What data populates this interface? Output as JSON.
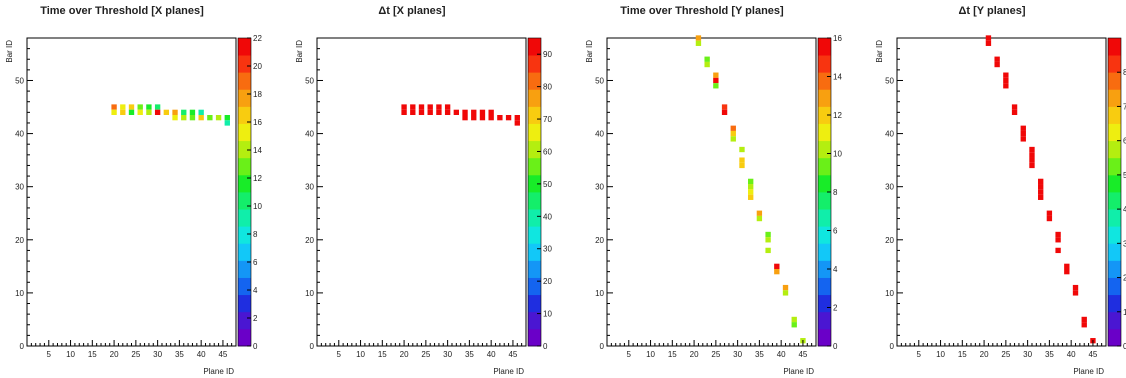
{
  "chart_data": [
    {
      "type": "heatmap",
      "title": "Time over Threshold [X planes]",
      "xlabel": "Plane ID",
      "ylabel": "Bar ID",
      "xlim": [
        0,
        48
      ],
      "ylim": [
        0,
        58
      ],
      "x_ticks": [
        5,
        10,
        15,
        20,
        25,
        30,
        35,
        40,
        45
      ],
      "y_ticks": [
        0,
        10,
        20,
        30,
        40,
        50
      ],
      "z_range": [
        0,
        22
      ],
      "z_ticks": [
        0,
        2,
        4,
        6,
        8,
        10,
        12,
        14,
        16,
        18,
        20,
        22
      ],
      "cells": [
        {
          "x": 20,
          "y": 45,
          "z": 19
        },
        {
          "x": 20,
          "y": 44,
          "z": 15
        },
        {
          "x": 22,
          "y": 45,
          "z": 15
        },
        {
          "x": 22,
          "y": 44,
          "z": 17
        },
        {
          "x": 24,
          "y": 45,
          "z": 16
        },
        {
          "x": 24,
          "y": 44,
          "z": 12
        },
        {
          "x": 26,
          "y": 45,
          "z": 13
        },
        {
          "x": 26,
          "y": 44,
          "z": 15
        },
        {
          "x": 28,
          "y": 45,
          "z": 12
        },
        {
          "x": 28,
          "y": 44,
          "z": 14
        },
        {
          "x": 30,
          "y": 45,
          "z": 10
        },
        {
          "x": 30,
          "y": 44,
          "z": 22
        },
        {
          "x": 32,
          "y": 44,
          "z": 17
        },
        {
          "x": 34,
          "y": 44,
          "z": 18
        },
        {
          "x": 34,
          "y": 43,
          "z": 15
        },
        {
          "x": 36,
          "y": 44,
          "z": 10
        },
        {
          "x": 36,
          "y": 43,
          "z": 14
        },
        {
          "x": 38,
          "y": 44,
          "z": 12
        },
        {
          "x": 38,
          "y": 43,
          "z": 13
        },
        {
          "x": 40,
          "y": 44,
          "z": 9
        },
        {
          "x": 40,
          "y": 43,
          "z": 17
        },
        {
          "x": 42,
          "y": 43,
          "z": 13
        },
        {
          "x": 44,
          "y": 43,
          "z": 14
        },
        {
          "x": 46,
          "y": 43,
          "z": 12
        },
        {
          "x": 46,
          "y": 42,
          "z": 9
        }
      ]
    },
    {
      "type": "heatmap",
      "title": "Δt [X planes]",
      "xlabel": "Plane ID",
      "ylabel": "Bar ID",
      "xlim": [
        0,
        48
      ],
      "ylim": [
        0,
        58
      ],
      "x_ticks": [
        5,
        10,
        15,
        20,
        25,
        30,
        35,
        40,
        45
      ],
      "y_ticks": [
        0,
        10,
        20,
        30,
        40,
        50
      ],
      "z_range": [
        0,
        95
      ],
      "z_ticks": [
        0,
        10,
        20,
        30,
        40,
        50,
        60,
        70,
        80,
        90
      ],
      "cells": [
        {
          "x": 20,
          "y": 45,
          "z": 92
        },
        {
          "x": 20,
          "y": 44,
          "z": 92
        },
        {
          "x": 22,
          "y": 45,
          "z": 92
        },
        {
          "x": 22,
          "y": 44,
          "z": 92
        },
        {
          "x": 24,
          "y": 45,
          "z": 92
        },
        {
          "x": 24,
          "y": 44,
          "z": 92
        },
        {
          "x": 26,
          "y": 45,
          "z": 92
        },
        {
          "x": 26,
          "y": 44,
          "z": 92
        },
        {
          "x": 28,
          "y": 45,
          "z": 92
        },
        {
          "x": 28,
          "y": 44,
          "z": 92
        },
        {
          "x": 30,
          "y": 45,
          "z": 92
        },
        {
          "x": 30,
          "y": 44,
          "z": 92
        },
        {
          "x": 32,
          "y": 44,
          "z": 92
        },
        {
          "x": 34,
          "y": 44,
          "z": 92
        },
        {
          "x": 34,
          "y": 43,
          "z": 92
        },
        {
          "x": 36,
          "y": 44,
          "z": 92
        },
        {
          "x": 36,
          "y": 43,
          "z": 92
        },
        {
          "x": 38,
          "y": 44,
          "z": 92
        },
        {
          "x": 38,
          "y": 43,
          "z": 92
        },
        {
          "x": 40,
          "y": 44,
          "z": 92
        },
        {
          "x": 40,
          "y": 43,
          "z": 92
        },
        {
          "x": 42,
          "y": 43,
          "z": 92
        },
        {
          "x": 44,
          "y": 43,
          "z": 92
        },
        {
          "x": 46,
          "y": 43,
          "z": 92
        },
        {
          "x": 46,
          "y": 42,
          "z": 92
        }
      ]
    },
    {
      "type": "heatmap",
      "title": "Time over Threshold [Y planes]",
      "xlabel": "Plane ID",
      "ylabel": "Bar ID",
      "xlim": [
        0,
        48
      ],
      "ylim": [
        0,
        58
      ],
      "x_ticks": [
        5,
        10,
        15,
        20,
        25,
        30,
        35,
        40,
        45
      ],
      "y_ticks": [
        0,
        10,
        20,
        30,
        40,
        50
      ],
      "z_range": [
        0,
        16
      ],
      "z_ticks": [
        0,
        2,
        4,
        6,
        8,
        10,
        12,
        14,
        16
      ],
      "cells": [
        {
          "x": 21,
          "y": 58,
          "z": 13
        },
        {
          "x": 21,
          "y": 57,
          "z": 10
        },
        {
          "x": 23,
          "y": 54,
          "z": 9
        },
        {
          "x": 23,
          "y": 53,
          "z": 10
        },
        {
          "x": 25,
          "y": 51,
          "z": 13
        },
        {
          "x": 25,
          "y": 50,
          "z": 16
        },
        {
          "x": 25,
          "y": 49,
          "z": 9
        },
        {
          "x": 27,
          "y": 45,
          "z": 15
        },
        {
          "x": 27,
          "y": 44,
          "z": 16
        },
        {
          "x": 29,
          "y": 41,
          "z": 14
        },
        {
          "x": 29,
          "y": 40,
          "z": 12
        },
        {
          "x": 29,
          "y": 39,
          "z": 10
        },
        {
          "x": 31,
          "y": 37,
          "z": 10
        },
        {
          "x": 31,
          "y": 35,
          "z": 12
        },
        {
          "x": 31,
          "y": 34,
          "z": 12
        },
        {
          "x": 33,
          "y": 31,
          "z": 9
        },
        {
          "x": 33,
          "y": 30,
          "z": 10
        },
        {
          "x": 33,
          "y": 29,
          "z": 11
        },
        {
          "x": 33,
          "y": 28,
          "z": 12
        },
        {
          "x": 35,
          "y": 25,
          "z": 13
        },
        {
          "x": 35,
          "y": 24,
          "z": 10
        },
        {
          "x": 37,
          "y": 21,
          "z": 9
        },
        {
          "x": 37,
          "y": 20,
          "z": 10
        },
        {
          "x": 37,
          "y": 18,
          "z": 10
        },
        {
          "x": 39,
          "y": 15,
          "z": 16
        },
        {
          "x": 39,
          "y": 14,
          "z": 13
        },
        {
          "x": 41,
          "y": 11,
          "z": 13
        },
        {
          "x": 41,
          "y": 10,
          "z": 10
        },
        {
          "x": 43,
          "y": 5,
          "z": 10
        },
        {
          "x": 43,
          "y": 4,
          "z": 9
        },
        {
          "x": 45,
          "y": 1,
          "z": 10
        }
      ]
    },
    {
      "type": "heatmap",
      "title": "Δt [Y planes]",
      "xlabel": "Plane ID",
      "ylabel": "Bar ID",
      "xlim": [
        0,
        48
      ],
      "ylim": [
        0,
        58
      ],
      "x_ticks": [
        5,
        10,
        15,
        20,
        25,
        30,
        35,
        40,
        45
      ],
      "y_ticks": [
        0,
        10,
        20,
        30,
        40,
        50
      ],
      "z_range": [
        0,
        9
      ],
      "z_ticks": [
        0,
        1,
        2,
        3,
        4,
        5,
        6,
        7,
        8
      ],
      "cells": [
        {
          "x": 21,
          "y": 58,
          "z": 8.7
        },
        {
          "x": 21,
          "y": 57,
          "z": 8.7
        },
        {
          "x": 23,
          "y": 54,
          "z": 8.7
        },
        {
          "x": 23,
          "y": 53,
          "z": 8.7
        },
        {
          "x": 25,
          "y": 51,
          "z": 8.7
        },
        {
          "x": 25,
          "y": 50,
          "z": 8.7
        },
        {
          "x": 25,
          "y": 49,
          "z": 8.7
        },
        {
          "x": 27,
          "y": 45,
          "z": 8.7
        },
        {
          "x": 27,
          "y": 44,
          "z": 8.7
        },
        {
          "x": 29,
          "y": 41,
          "z": 8.7
        },
        {
          "x": 29,
          "y": 40,
          "z": 8.7
        },
        {
          "x": 29,
          "y": 39,
          "z": 8.7
        },
        {
          "x": 31,
          "y": 37,
          "z": 8.7
        },
        {
          "x": 31,
          "y": 36,
          "z": 8.7
        },
        {
          "x": 31,
          "y": 35,
          "z": 8.7
        },
        {
          "x": 31,
          "y": 34,
          "z": 8.7
        },
        {
          "x": 33,
          "y": 31,
          "z": 8.7
        },
        {
          "x": 33,
          "y": 30,
          "z": 8.7
        },
        {
          "x": 33,
          "y": 29,
          "z": 8.7
        },
        {
          "x": 33,
          "y": 28,
          "z": 8.7
        },
        {
          "x": 35,
          "y": 25,
          "z": 8.7
        },
        {
          "x": 35,
          "y": 24,
          "z": 8.7
        },
        {
          "x": 37,
          "y": 21,
          "z": 8.7
        },
        {
          "x": 37,
          "y": 20,
          "z": 8.7
        },
        {
          "x": 37,
          "y": 18,
          "z": 8.7
        },
        {
          "x": 39,
          "y": 15,
          "z": 8.7
        },
        {
          "x": 39,
          "y": 14,
          "z": 8.7
        },
        {
          "x": 41,
          "y": 11,
          "z": 8.7
        },
        {
          "x": 41,
          "y": 10,
          "z": 8.7
        },
        {
          "x": 43,
          "y": 5,
          "z": 8.7
        },
        {
          "x": 43,
          "y": 4,
          "z": 8.7
        },
        {
          "x": 45,
          "y": 1,
          "z": 8.7
        }
      ]
    }
  ],
  "palette": [
    "#6a00c8",
    "#4a16d2",
    "#1f2ee0",
    "#1464f0",
    "#1496f6",
    "#12c8f8",
    "#10e6e0",
    "#10eeaa",
    "#14ee6a",
    "#18ec28",
    "#6af018",
    "#b4ee10",
    "#eeee10",
    "#f8cc10",
    "#f8a010",
    "#f86c10",
    "#f83410",
    "#f00808"
  ]
}
